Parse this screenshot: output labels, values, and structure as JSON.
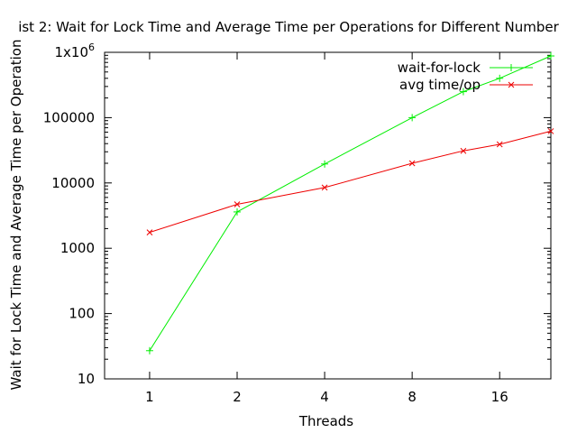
{
  "chart_data": {
    "type": "line",
    "title": "ist 2: Wait for Lock Time and Average Time per Operations for Different Number",
    "xlabel": "Threads",
    "ylabel": "Wait for Lock Time and Average Time per Operation",
    "x_scale": "log2",
    "y_scale": "log10",
    "xlim": [
      0.7,
      24
    ],
    "ylim": [
      10,
      1000000
    ],
    "x_ticks": [
      1,
      2,
      4,
      8,
      16
    ],
    "x_tick_labels": [
      "1",
      "2",
      "4",
      "8",
      "16"
    ],
    "y_ticks": [
      10,
      100,
      1000,
      10000,
      100000,
      1000000
    ],
    "y_tick_labels": [
      "10",
      "100",
      "1000",
      "10000",
      "100000",
      "1x10^6"
    ],
    "legend_position": "top-right",
    "grid": false,
    "series": [
      {
        "name": "wait-for-lock",
        "color": "#00ee00",
        "marker": "+",
        "x": [
          1,
          2,
          4,
          8,
          12,
          16,
          24
        ],
        "y": [
          27,
          3600,
          19500,
          100000,
          250000,
          400000,
          880000
        ]
      },
      {
        "name": "avg time/op",
        "color": "#ee0000",
        "marker": "x",
        "x": [
          1,
          2,
          4,
          8,
          12,
          16,
          24
        ],
        "y": [
          1750,
          4700,
          8500,
          20000,
          31000,
          39000,
          62000
        ]
      }
    ]
  }
}
